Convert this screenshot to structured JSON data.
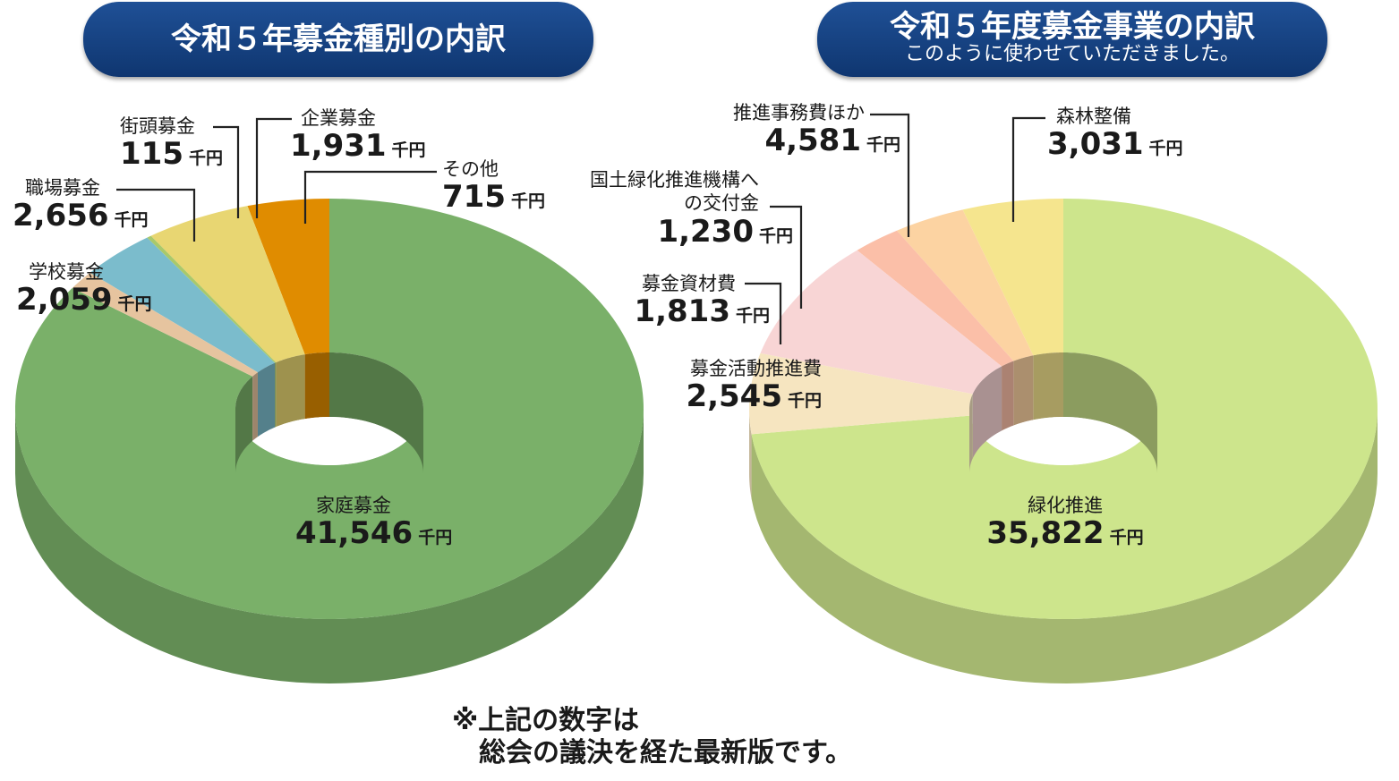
{
  "titles": {
    "left": "令和５年募金種別の内訳",
    "right": "令和５年度募金事業の内訳",
    "right_sub": "このように使わせていただきました。"
  },
  "unit": "千円",
  "note": {
    "line1": "※上記の数字は",
    "line2": "総会の議決を経た最新版です。"
  },
  "chart_data": [
    {
      "type": "pie",
      "title": "令和５年募金種別の内訳",
      "unit": "千円",
      "slices": [
        {
          "label": "家庭募金",
          "value": 41546,
          "display": "41,546",
          "color": "#7ab069"
        },
        {
          "label": "学校募金",
          "value": 2059,
          "display": "2,059",
          "color": "#e08c00"
        },
        {
          "label": "職場募金",
          "value": 2656,
          "display": "2,656",
          "color": "#e8d672"
        },
        {
          "label": "街頭募金",
          "value": 115,
          "display": "115",
          "color": "#a9c96b"
        },
        {
          "label": "企業募金",
          "value": 1931,
          "display": "1,931",
          "color": "#7bbccc"
        },
        {
          "label": "その他",
          "value": 715,
          "display": "715",
          "color": "#e6c49f"
        }
      ]
    },
    {
      "type": "pie",
      "title": "令和５年度募金事業の内訳",
      "unit": "千円",
      "slices": [
        {
          "label": "緑化推進",
          "value": 35822,
          "display": "35,822",
          "color": "#cde58c"
        },
        {
          "label": "募金活動推進費",
          "value": 2545,
          "display": "2,545",
          "color": "#f5e58e"
        },
        {
          "label": "募金資材費",
          "value": 1813,
          "display": "1,813",
          "color": "#fcd3a2"
        },
        {
          "label": "国土緑化推進機構への交付金",
          "value": 1230,
          "display": "1,230",
          "color": "#fbbfa8"
        },
        {
          "label": "推進事務費ほか",
          "value": 4581,
          "display": "4,581",
          "color": "#f8d5d5"
        },
        {
          "label": "森林整備",
          "value": 3031,
          "display": "3,031",
          "color": "#f6e5c0"
        }
      ]
    }
  ]
}
